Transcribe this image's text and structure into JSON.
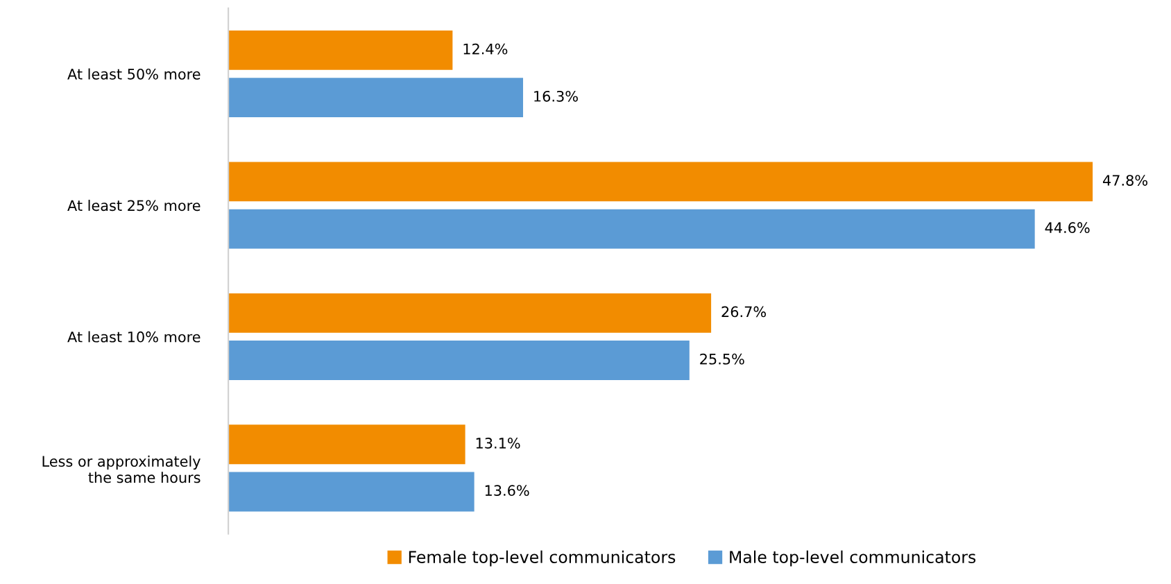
{
  "chart_data": {
    "type": "bar",
    "orientation": "horizontal",
    "categories": [
      "At least 50% more",
      "At least 25% more",
      "At least 10% more",
      "Less or approximately\nthe same hours"
    ],
    "series": [
      {
        "name": "Female top-level communicators",
        "color": "#f28c00",
        "values": [
          12.4,
          47.8,
          26.7,
          13.1
        ],
        "value_labels": [
          "12.4%",
          "47.8%",
          "26.7%",
          "13.1%"
        ]
      },
      {
        "name": "Male top-level communicators",
        "color": "#5b9bd5",
        "values": [
          16.3,
          44.6,
          25.5,
          13.6
        ],
        "value_labels": [
          "16.3%",
          "44.6%",
          "25.5%",
          "13.6%"
        ]
      }
    ],
    "tick_labels": "y",
    "grid": false,
    "legend": "bottom"
  }
}
